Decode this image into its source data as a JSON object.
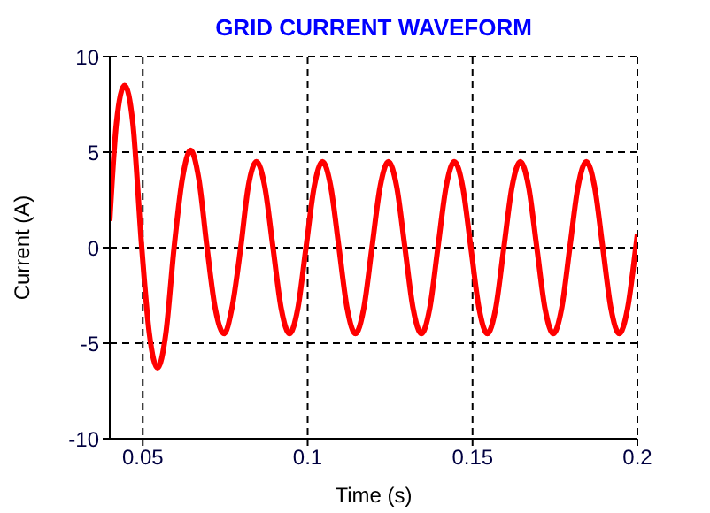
{
  "chart_data": {
    "type": "line",
    "title": "GRID CURRENT WAVEFORM",
    "xlabel": "Time (s)",
    "ylabel": "Current (A)",
    "xlim": [
      0.04,
      0.2
    ],
    "xticks": [
      0.05,
      0.1,
      0.15,
      0.2
    ],
    "ylim": [
      -10,
      10
    ],
    "yticks": [
      -10,
      -5,
      0,
      5,
      10
    ],
    "grid": true,
    "series": [
      {
        "color": "#ff0000",
        "x": [
          0.04,
          0.042,
          0.0445,
          0.047,
          0.0497,
          0.052,
          0.0545,
          0.057,
          0.0595,
          0.062,
          0.0645,
          0.067,
          0.0695,
          0.072,
          0.0747,
          0.077,
          0.0797,
          0.082,
          0.0845,
          0.087,
          0.0895,
          0.092,
          0.0945,
          0.097,
          0.0995,
          0.102,
          0.1045,
          0.107,
          0.1095,
          0.112,
          0.1145,
          0.117,
          0.1195,
          0.122,
          0.1245,
          0.127,
          0.1295,
          0.132,
          0.1345,
          0.137,
          0.1395,
          0.142,
          0.1445,
          0.147,
          0.1495,
          0.152,
          0.1545,
          0.157,
          0.1595,
          0.162,
          0.1645,
          0.167,
          0.1695,
          0.172,
          0.1745,
          0.177,
          0.1795,
          0.182,
          0.1845,
          0.187,
          0.1895,
          0.192,
          0.1945,
          0.197,
          0.1995,
          0.2
        ],
        "values": [
          1.4,
          6.5,
          8.5,
          6.5,
          0,
          -4.5,
          -6.3,
          -4.5,
          0,
          3.6,
          5.1,
          3.6,
          0,
          -3.2,
          -4.5,
          -3.2,
          0,
          3.2,
          4.5,
          3.2,
          0,
          -3.2,
          -4.5,
          -3.2,
          0,
          3.2,
          4.5,
          3.2,
          0,
          -3.2,
          -4.5,
          -3.2,
          0,
          3.2,
          4.5,
          3.2,
          0,
          -3.2,
          -4.5,
          -3.2,
          0,
          3.2,
          4.5,
          3.2,
          0,
          -3.2,
          -4.5,
          -3.2,
          0,
          3.2,
          4.5,
          3.2,
          0,
          -3.2,
          -4.5,
          -3.2,
          0,
          3.2,
          4.5,
          3.2,
          0,
          -3.2,
          -4.5,
          -3.2,
          0,
          0.7
        ]
      }
    ]
  }
}
